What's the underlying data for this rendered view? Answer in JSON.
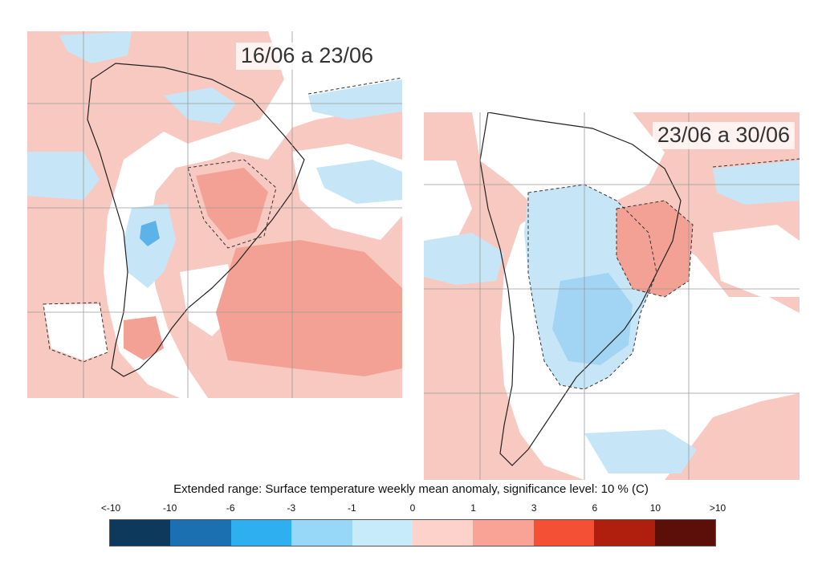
{
  "maps": [
    {
      "period_label": "16/06 a 23/06",
      "dominant_anomaly": "warm (0 to 1 C, with 1 to 3 C over central Brazil and the South Atlantic)"
    },
    {
      "period_label": "23/06 a 30/06",
      "dominant_anomaly": "cool (-1 to 0 C over central South America), warm over northeast Brazil"
    }
  ],
  "legend": {
    "title": "Extended range: Surface temperature weekly mean anomaly, significance level: 10 % (C)",
    "tick_labels": [
      "<-10",
      "-10",
      "-6",
      "-3",
      "-1",
      "0",
      "1",
      "3",
      "6",
      "10",
      ">10"
    ],
    "colors": [
      "#0d3a5c",
      "#1b70b1",
      "#2eb0f0",
      "#97d8f8",
      "#c8ebfb",
      "#fdd2cb",
      "#f8a395",
      "#f45035",
      "#b01e0e",
      "#5c0f08"
    ]
  },
  "palette": {
    "warm_light": "#f8c9c1",
    "warm_medium": "#f4a195",
    "cool_light": "#c6e6f8",
    "cool_medium": "#a2d5f4",
    "cool_strong": "#5bb3ea",
    "grid_line": "#9a9a9a"
  }
}
